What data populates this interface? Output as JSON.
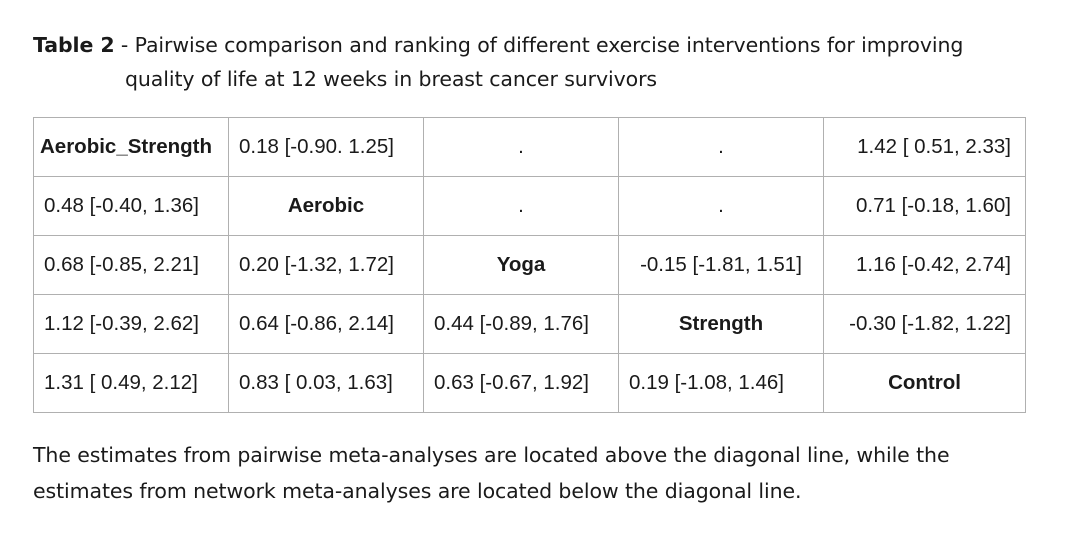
{
  "caption": {
    "label": "Table 2",
    "separator": " - ",
    "text_line1": "Pairwise comparison and ranking of different exercise interventions for improving",
    "text_line2": "quality of life at 12 weeks in breast cancer survivors"
  },
  "table": {
    "rows": [
      [
        "Aerobic_Strength",
        "0.18 [-0.90. 1.25]",
        ".",
        ".",
        "1.42 [ 0.51, 2.33]"
      ],
      [
        "0.48 [-0.40, 1.36]",
        "Aerobic",
        ".",
        ".",
        "0.71 [-0.18, 1.60]"
      ],
      [
        "0.68 [-0.85, 2.21]",
        "0.20 [-1.32, 1.72]",
        "Yoga",
        "-0.15 [-1.81, 1.51]",
        "1.16 [-0.42, 2.74]"
      ],
      [
        "1.12 [-0.39, 2.62]",
        "0.64 [-0.86, 2.14]",
        "0.44 [-0.89, 1.76]",
        "Strength",
        "-0.30 [-1.82, 1.22]"
      ],
      [
        "1.31 [ 0.49, 2.12]",
        "0.83 [ 0.03, 1.63]",
        "0.63 [-0.67, 1.92]",
        "0.19 [-1.08, 1.46]",
        "Control"
      ]
    ]
  },
  "footnote": {
    "line1": "The estimates from pairwise meta-analyses are located above the diagonal line, while the",
    "line2": "estimates from network meta-analyses are located below the diagonal line."
  }
}
